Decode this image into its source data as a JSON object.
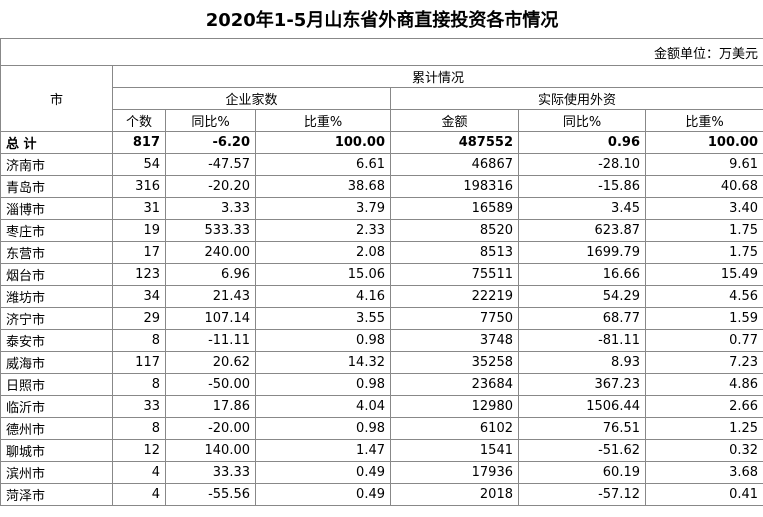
{
  "title": "2020年1-5月山东省外商直接投资各市情况",
  "unit": "金额单位：万美元",
  "header": {
    "city": "市",
    "group": "累计情况",
    "sub": [
      "企业家数",
      "实际使用外资"
    ],
    "cols": [
      "个数",
      "同比%",
      "比重%",
      "金额",
      "同比%",
      "比重%"
    ]
  },
  "rows": [
    [
      "总 计",
      "817",
      "-6.20",
      "100.00",
      "487552",
      "0.96",
      "100.00"
    ],
    [
      "济南市",
      "54",
      "-47.57",
      "6.61",
      "46867",
      "-28.10",
      "9.61"
    ],
    [
      "青岛市",
      "316",
      "-20.20",
      "38.68",
      "198316",
      "-15.86",
      "40.68"
    ],
    [
      "淄博市",
      "31",
      "3.33",
      "3.79",
      "16589",
      "3.45",
      "3.40"
    ],
    [
      "枣庄市",
      "19",
      "533.33",
      "2.33",
      "8520",
      "623.87",
      "1.75"
    ],
    [
      "东营市",
      "17",
      "240.00",
      "2.08",
      "8513",
      "1699.79",
      "1.75"
    ],
    [
      "烟台市",
      "123",
      "6.96",
      "15.06",
      "75511",
      "16.66",
      "15.49"
    ],
    [
      "潍坊市",
      "34",
      "21.43",
      "4.16",
      "22219",
      "54.29",
      "4.56"
    ],
    [
      "济宁市",
      "29",
      "107.14",
      "3.55",
      "7750",
      "68.77",
      "1.59"
    ],
    [
      "泰安市",
      "8",
      "-11.11",
      "0.98",
      "3748",
      "-81.11",
      "0.77"
    ],
    [
      "威海市",
      "117",
      "20.62",
      "14.32",
      "35258",
      "8.93",
      "7.23"
    ],
    [
      "日照市",
      "8",
      "-50.00",
      "0.98",
      "23684",
      "367.23",
      "4.86"
    ],
    [
      "临沂市",
      "33",
      "17.86",
      "4.04",
      "12980",
      "1506.44",
      "2.66"
    ],
    [
      "德州市",
      "8",
      "-20.00",
      "0.98",
      "6102",
      "76.51",
      "1.25"
    ],
    [
      "聊城市",
      "12",
      "140.00",
      "1.47",
      "1541",
      "-51.62",
      "0.32"
    ],
    [
      "滨州市",
      "4",
      "33.33",
      "0.49",
      "17936",
      "60.19",
      "3.68"
    ],
    [
      "菏泽市",
      "4",
      "-55.56",
      "0.49",
      "2018",
      "-57.12",
      "0.41"
    ]
  ]
}
